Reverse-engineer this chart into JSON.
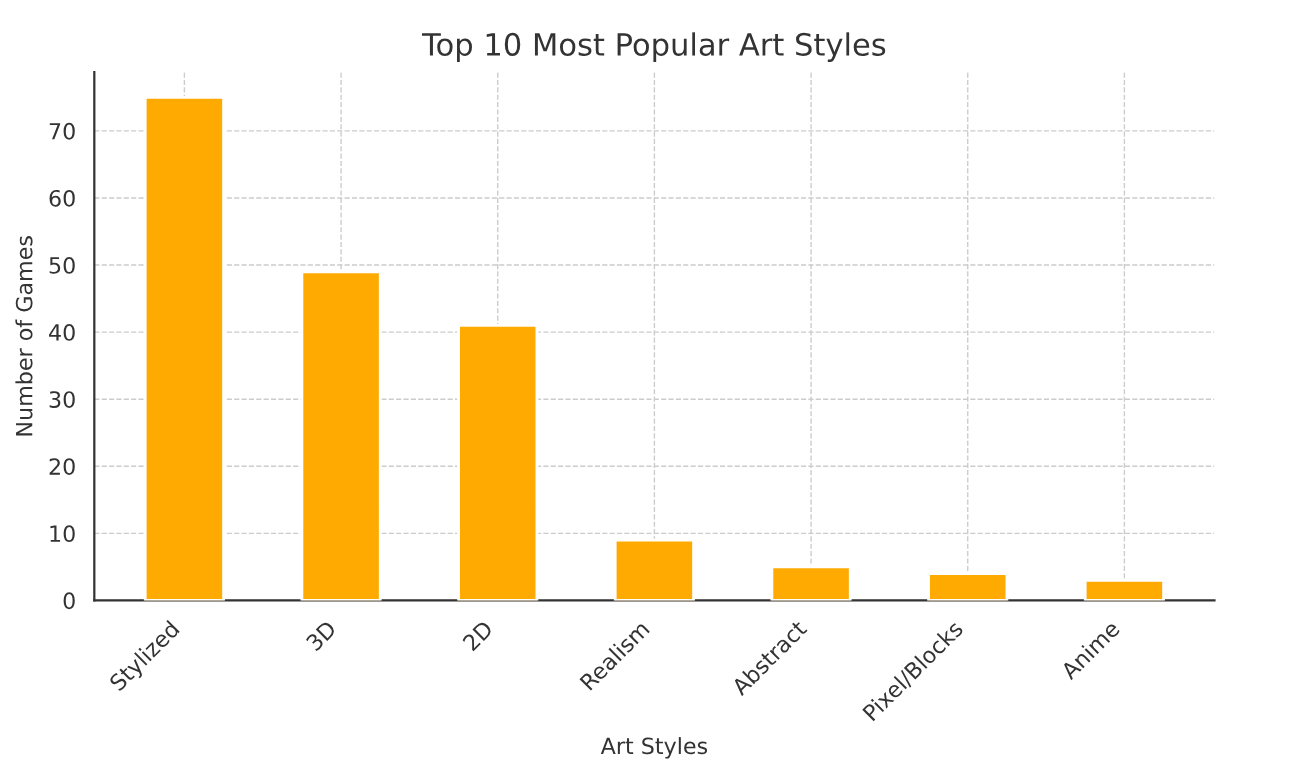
{
  "chart_data": {
    "type": "bar",
    "title": "Top 10 Most Popular Art Styles",
    "xlabel": "Art Styles",
    "ylabel": "Number of Games",
    "categories": [
      "Stylized",
      "3D",
      "2D",
      "Realism",
      "Abstract",
      "Pixel/Blocks",
      "Anime"
    ],
    "values": [
      75,
      49,
      41,
      9,
      5,
      4,
      3
    ],
    "color": "#ffaa00",
    "ylim": [
      0,
      78.75
    ],
    "yticks": [
      0,
      10,
      20,
      30,
      40,
      50,
      60,
      70
    ],
    "grid": true
  }
}
